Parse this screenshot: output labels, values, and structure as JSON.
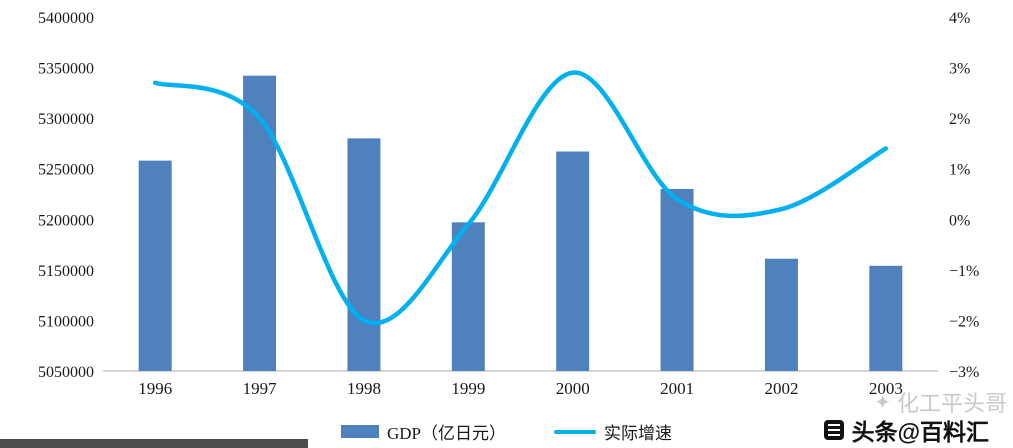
{
  "chart_data": {
    "type": "bar+line combo",
    "title": "",
    "categories": [
      "1996",
      "1997",
      "1998",
      "1999",
      "2000",
      "2001",
      "2002",
      "2003"
    ],
    "series": [
      {
        "name": "GDP（亿日元）",
        "type": "bar",
        "axis": "left",
        "color": "#4f81bd",
        "values": [
          5258000,
          5342000,
          5280000,
          5197000,
          5267000,
          5230000,
          5161000,
          5154000
        ]
      },
      {
        "name": "实际增速",
        "type": "line",
        "axis": "right",
        "color": "#00b0f0",
        "values": [
          2.7,
          2.0,
          -2.0,
          -0.1,
          2.9,
          0.4,
          0.2,
          1.4
        ]
      }
    ],
    "left_axis": {
      "min": 5050000,
      "max": 5400000,
      "step": 50000,
      "ticks": [
        "5400000",
        "5350000",
        "5300000",
        "5250000",
        "5200000",
        "5150000",
        "5100000",
        "5050000"
      ]
    },
    "right_axis": {
      "min": -3,
      "max": 4,
      "step": 1,
      "ticks": [
        "4%",
        "3%",
        "2%",
        "1%",
        "0%",
        "−1%",
        "−2%",
        "−3%"
      ]
    },
    "grid": "off",
    "legend_position": "bottom"
  },
  "watermarks": {
    "gray_text": "化工平头哥",
    "gray_glyph": "✦",
    "black_text": "头条@百料汇"
  }
}
